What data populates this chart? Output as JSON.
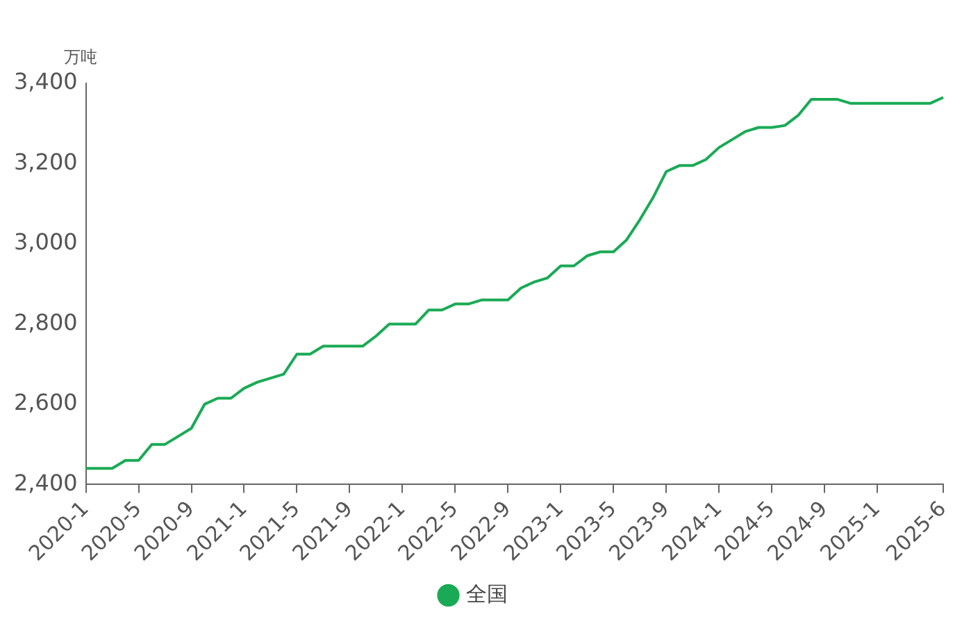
{
  "chart_data": {
    "type": "line",
    "ylabel": "万吨",
    "categories": [
      "2020-1",
      null,
      null,
      null,
      "2020-5",
      null,
      null,
      null,
      "2020-9",
      null,
      null,
      null,
      "2021-1",
      null,
      null,
      null,
      "2021-5",
      null,
      null,
      null,
      "2021-9",
      null,
      null,
      null,
      "2022-1",
      null,
      null,
      null,
      "2022-5",
      null,
      null,
      null,
      "2022-9",
      null,
      null,
      null,
      "2023-1",
      null,
      null,
      null,
      "2023-5",
      null,
      null,
      null,
      "2023-9",
      null,
      null,
      null,
      "2024-1",
      null,
      null,
      null,
      "2024-5",
      null,
      null,
      null,
      "2024-9",
      null,
      null,
      null,
      "2025-1",
      null,
      null,
      null,
      null,
      "2025-6"
    ],
    "series": [
      {
        "name": "全国",
        "color": "#1aaa55",
        "values": [
          2440,
          2440,
          2440,
          2460,
          2460,
          2500,
          2500,
          2520,
          2540,
          2600,
          2615,
          2615,
          2640,
          2655,
          2665,
          2675,
          2725,
          2725,
          2745,
          2745,
          2745,
          2745,
          2770,
          2800,
          2800,
          2800,
          2835,
          2835,
          2850,
          2850,
          2860,
          2860,
          2860,
          2890,
          2905,
          2915,
          2945,
          2945,
          2970,
          2980,
          2980,
          3010,
          3060,
          3115,
          3180,
          3195,
          3195,
          3210,
          3240,
          3260,
          3280,
          3290,
          3290,
          3295,
          3320,
          3360,
          3360,
          3360,
          3350,
          3350,
          3350,
          3350,
          3350,
          3350,
          3350,
          3365
        ]
      }
    ],
    "ylim": [
      2400,
      3400
    ],
    "yticks": [
      {
        "value": 2400,
        "label": "2,400"
      },
      {
        "value": 2600,
        "label": "2,600"
      },
      {
        "value": 2800,
        "label": "2,800"
      },
      {
        "value": 3000,
        "label": "3,000"
      },
      {
        "value": 3200,
        "label": "3,200"
      },
      {
        "value": 3400,
        "label": "3,400"
      }
    ],
    "grid": false,
    "legend": "bottom",
    "marker": "none",
    "line_style": "solid"
  }
}
